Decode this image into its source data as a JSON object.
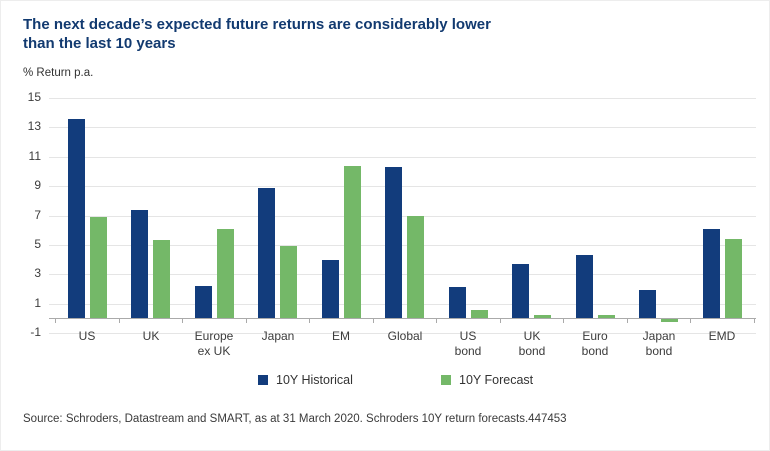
{
  "source": "Source: Schroders, Datastream and SMART, as at 31 March 2020. Schroders 10Y return forecasts.447453",
  "chart_data": {
    "type": "bar",
    "title": "The next decade’s expected future returns are considerably lower\nthan the last 10 years",
    "title_color": "#123a70",
    "ylabel": "% Return p.a.",
    "xlabel": "",
    "categories": [
      "US",
      "UK",
      "Europe\nex UK",
      "Japan",
      "EM",
      "Global",
      "US\nbond",
      "UK\nbond",
      "Euro\nbond",
      "Japan\nbond",
      "EMD"
    ],
    "series": [
      {
        "name": "10Y Historical",
        "color": "#123c7c",
        "values": [
          13.6,
          7.4,
          2.2,
          8.9,
          4.0,
          10.3,
          2.1,
          3.7,
          4.3,
          1.9,
          6.1
        ]
      },
      {
        "name": "10Y Forecast",
        "color": "#74b868",
        "values": [
          6.9,
          5.3,
          6.1,
          4.9,
          10.4,
          7.0,
          0.6,
          0.2,
          0.2,
          -0.2,
          5.4
        ]
      }
    ],
    "yticks": [
      15,
      13,
      11,
      9,
      7,
      5,
      3,
      1,
      -1
    ],
    "ylim": [
      -1,
      15
    ],
    "grid": true,
    "legend_position": "bottom"
  }
}
